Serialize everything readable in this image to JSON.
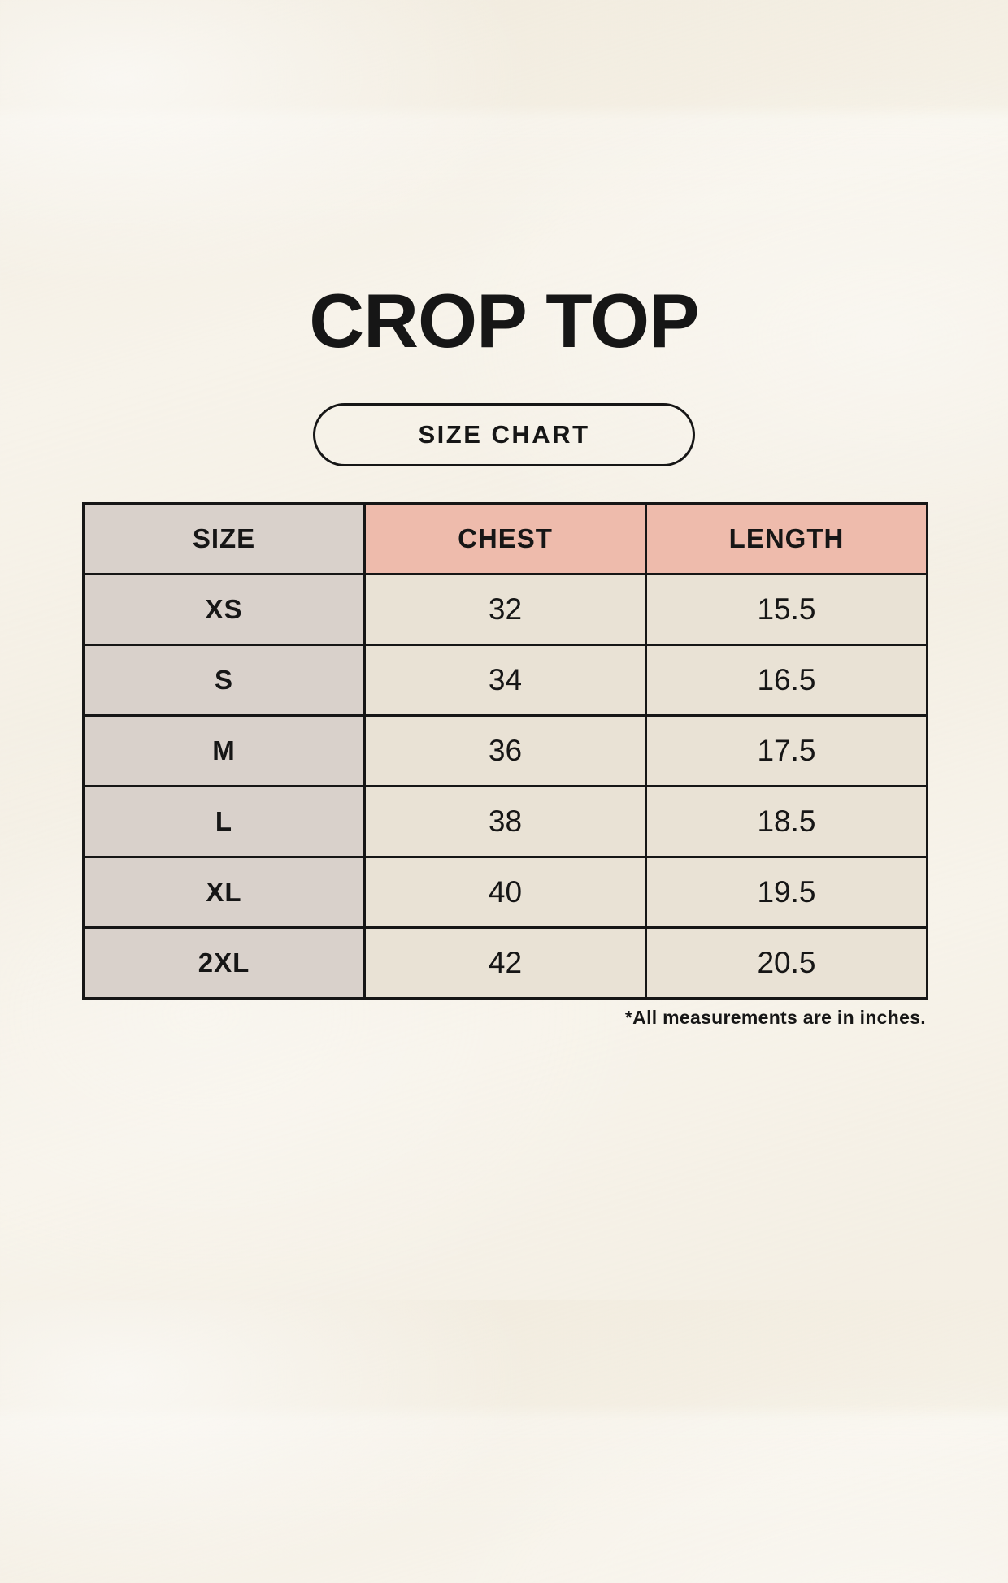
{
  "title": "CROP TOP",
  "button": {
    "label": "SIZE CHART"
  },
  "table": {
    "headers": {
      "size": "SIZE",
      "chest": "CHEST",
      "length": "LENGTH"
    },
    "rows": [
      {
        "size": "XS",
        "chest": "32",
        "length": "15.5"
      },
      {
        "size": "S",
        "chest": "34",
        "length": "16.5"
      },
      {
        "size": "M",
        "chest": "36",
        "length": "17.5"
      },
      {
        "size": "L",
        "chest": "38",
        "length": "18.5"
      },
      {
        "size": "XL",
        "chest": "40",
        "length": "19.5"
      },
      {
        "size": "2XL",
        "chest": "42",
        "length": "20.5"
      }
    ]
  },
  "footnote": "*All measurements are in inches.",
  "colors": {
    "page_background": "#f7f3ea",
    "header_accent_pink": "#eebbac",
    "size_column_gray": "#d9d1cb",
    "value_cell_cream": "#e9e2d5",
    "border_black": "#161616",
    "text_black": "#161616"
  },
  "chart_data": {
    "type": "table",
    "title": "CROP TOP",
    "subtitle": "SIZE CHART",
    "columns": [
      "SIZE",
      "CHEST",
      "LENGTH"
    ],
    "rows": [
      [
        "XS",
        32,
        15.5
      ],
      [
        "S",
        34,
        16.5
      ],
      [
        "M",
        36,
        17.5
      ],
      [
        "L",
        38,
        18.5
      ],
      [
        "XL",
        40,
        19.5
      ],
      [
        "2XL",
        42,
        20.5
      ]
    ],
    "units": "inches",
    "note": "*All measurements are in inches."
  }
}
